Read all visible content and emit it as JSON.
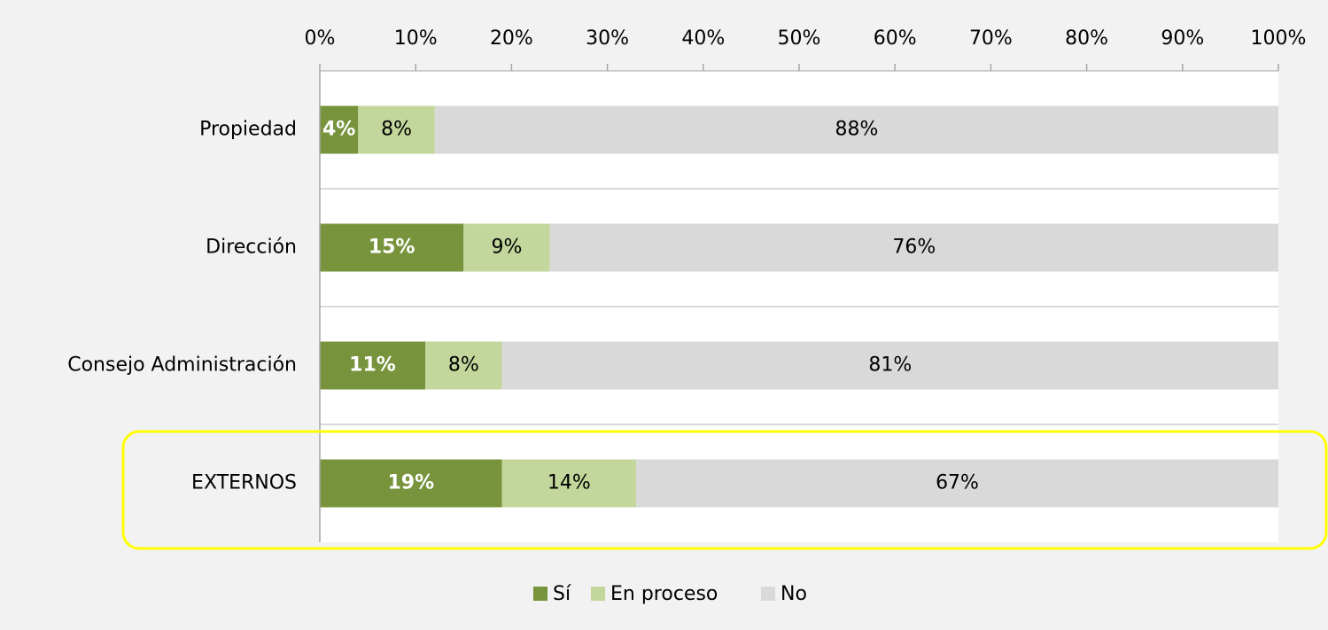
{
  "chart_data": {
    "type": "stacked_bar_horizontal",
    "categories": [
      "Propiedad",
      "Dirección",
      "Consejo Administración",
      "EXTERNOS"
    ],
    "series": [
      {
        "name": "Sí",
        "color": "#77933c",
        "values": [
          4,
          15,
          11,
          19
        ],
        "value_labels": [
          "4%",
          "15%",
          "11%",
          "19%"
        ]
      },
      {
        "name": "En proceso",
        "color": "#c3d69b",
        "values": [
          8,
          9,
          8,
          14
        ],
        "value_labels": [
          "8%",
          "9%",
          "8%",
          "14%"
        ]
      },
      {
        "name": "No",
        "color": "#d9d9d9",
        "values": [
          88,
          76,
          81,
          67
        ],
        "value_labels": [
          "88%",
          "76%",
          "81%",
          "67%"
        ]
      }
    ],
    "xlim": [
      0,
      100
    ],
    "xticks": [
      {
        "value": 0,
        "label": "0%"
      },
      {
        "value": 10,
        "label": "10%"
      },
      {
        "value": 20,
        "label": "20%"
      },
      {
        "value": 30,
        "label": "30%"
      },
      {
        "value": 40,
        "label": "40%"
      },
      {
        "value": 50,
        "label": "50%"
      },
      {
        "value": 60,
        "label": "60%"
      },
      {
        "value": 70,
        "label": "70%"
      },
      {
        "value": 80,
        "label": "80%"
      },
      {
        "value": 90,
        "label": "90%"
      },
      {
        "value": 100,
        "label": "100%"
      }
    ],
    "legend": "bottom"
  }
}
